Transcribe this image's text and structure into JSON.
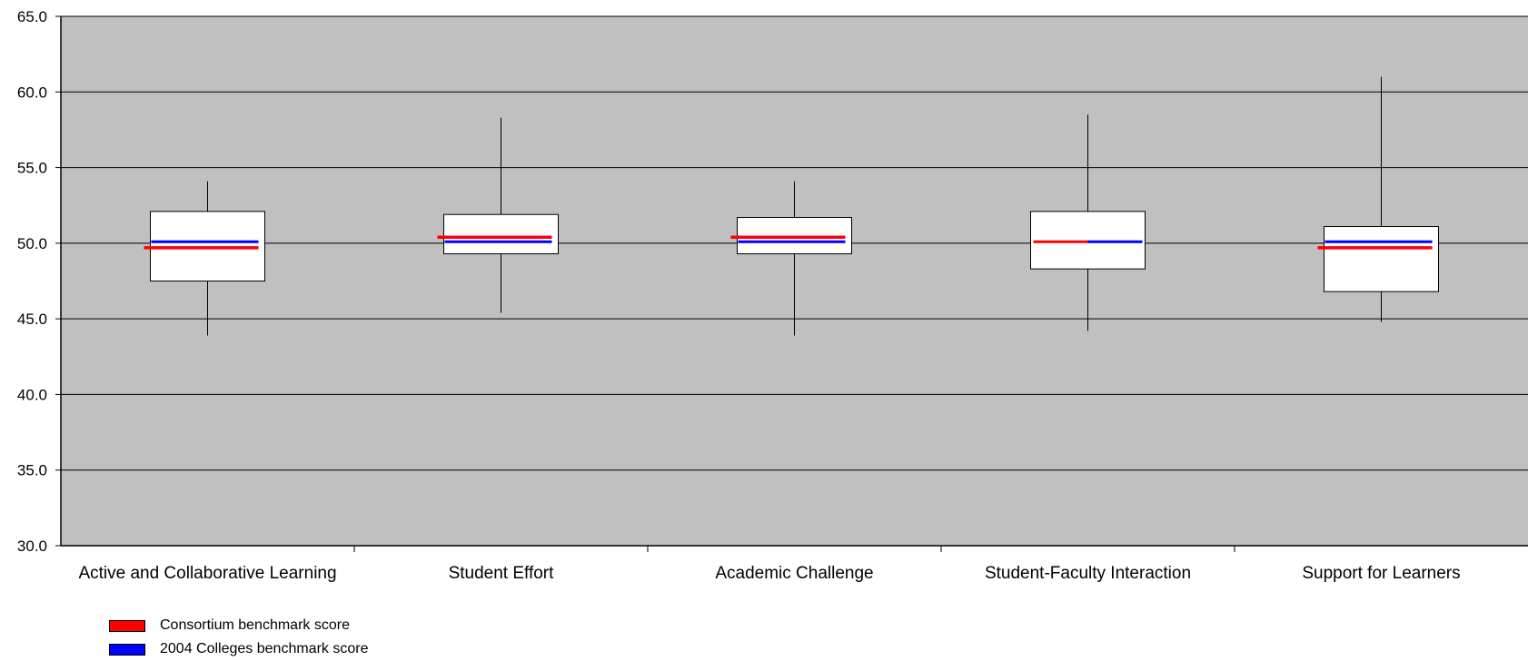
{
  "chart_data": {
    "type": "box",
    "ylim": [
      30,
      65
    ],
    "yticks": [
      30,
      35,
      40,
      45,
      50,
      55,
      60,
      65
    ],
    "grid": true,
    "background": "#c0c0c0",
    "categories": [
      "Active and Collaborative Learning",
      "Student Effort",
      "Academic Challenge",
      "Student-Faculty Interaction",
      "Support for Learners"
    ],
    "boxes": [
      {
        "min": 43.9,
        "q1": 47.5,
        "q3": 52.1,
        "max": 54.1
      },
      {
        "min": 45.4,
        "q1": 49.3,
        "q3": 51.9,
        "max": 58.3
      },
      {
        "min": 43.9,
        "q1": 49.3,
        "q3": 51.7,
        "max": 54.1
      },
      {
        "min": 44.2,
        "q1": 48.3,
        "q3": 52.1,
        "max": 58.5
      },
      {
        "min": 44.8,
        "q1": 46.8,
        "q3": 51.1,
        "max": 61.0
      }
    ],
    "series": [
      {
        "name": "Consortium benchmark score",
        "color": "#ff0000",
        "values": [
          49.7,
          50.4,
          50.4,
          50.1,
          49.7
        ]
      },
      {
        "name": "2004 Colleges benchmark score",
        "color": "#0000ff",
        "values": [
          50.1,
          50.1,
          50.1,
          50.1,
          50.1
        ]
      }
    ],
    "legend_position": "bottom-left"
  }
}
